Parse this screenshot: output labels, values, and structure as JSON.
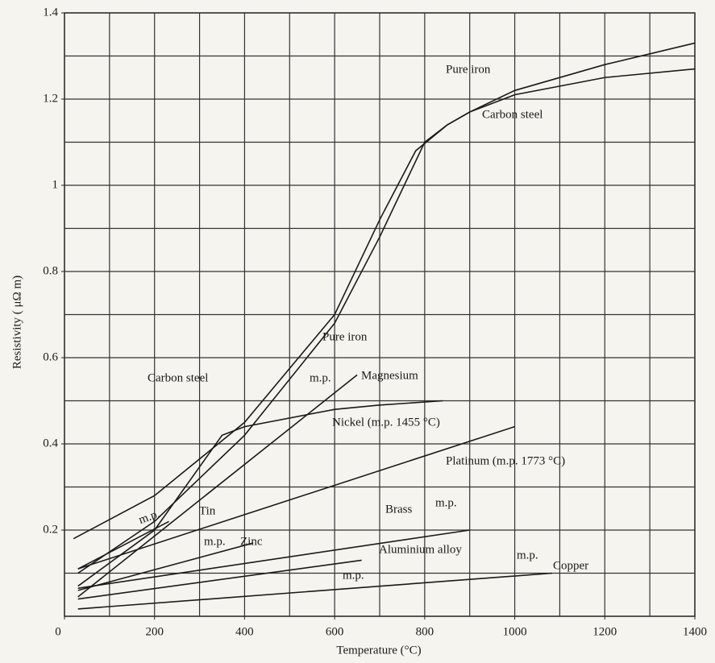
{
  "chart_data": {
    "type": "line",
    "xlabel": "Temperature (°C)",
    "ylabel": "Resistivity ( μΩ m)",
    "xlim": [
      0,
      1400
    ],
    "ylim": [
      0,
      1.4
    ],
    "xticks": [
      0,
      200,
      400,
      600,
      800,
      1000,
      1200,
      1400
    ],
    "yticks": [
      0.2,
      0.4,
      0.6,
      0.8,
      1.0,
      1.2,
      1.4
    ],
    "xgrid": [
      100,
      200,
      300,
      400,
      500,
      600,
      700,
      800,
      900,
      1000,
      1100,
      1200,
      1300
    ],
    "ygrid": [
      0.1,
      0.2,
      0.3,
      0.4,
      0.5,
      0.6,
      0.7,
      0.8,
      0.9,
      1.0,
      1.1,
      1.2,
      1.3
    ],
    "grid": true,
    "series": [
      {
        "name": "Pure iron",
        "color": "#1a1a1a",
        "x": [
          30,
          200,
          400,
          600,
          700,
          800,
          850,
          900,
          1000,
          1200,
          1400
        ],
        "values": [
          0.1,
          0.22,
          0.42,
          0.68,
          0.88,
          1.1,
          1.14,
          1.17,
          1.22,
          1.28,
          1.33
        ]
      },
      {
        "name": "Carbon steel",
        "color": "#1a1a1a",
        "x": [
          20,
          200,
          400,
          600,
          700,
          780,
          850,
          900,
          1000,
          1200,
          1400
        ],
        "values": [
          0.18,
          0.28,
          0.45,
          0.7,
          0.92,
          1.08,
          1.14,
          1.17,
          1.21,
          1.25,
          1.27
        ]
      },
      {
        "name": "Magnesium",
        "color": "#1a1a1a",
        "x": [
          30,
          650
        ],
        "values": [
          0.045,
          0.56
        ]
      },
      {
        "name": "Nickel (m.p. 1455 °C)",
        "color": "#1a1a1a",
        "x": [
          30,
          200,
          350,
          400,
          600,
          700,
          840
        ],
        "values": [
          0.07,
          0.2,
          0.42,
          0.44,
          0.48,
          0.49,
          0.5
        ]
      },
      {
        "name": "Platinum (m.p. 1773 °C)",
        "color": "#1a1a1a",
        "x": [
          30,
          1000
        ],
        "values": [
          0.11,
          0.44
        ]
      },
      {
        "name": "Tin",
        "color": "#1a1a1a",
        "x": [
          30,
          232
        ],
        "values": [
          0.11,
          0.22
        ]
      },
      {
        "name": "Zinc",
        "color": "#1a1a1a",
        "x": [
          30,
          419
        ],
        "values": [
          0.06,
          0.17
        ]
      },
      {
        "name": "Brass",
        "color": "#1a1a1a",
        "x": [
          30,
          900
        ],
        "values": [
          0.065,
          0.2
        ]
      },
      {
        "name": "Aluminium alloy",
        "color": "#1a1a1a",
        "x": [
          30,
          660
        ],
        "values": [
          0.04,
          0.13
        ]
      },
      {
        "name": "Copper",
        "color": "#1a1a1a",
        "x": [
          30,
          1083
        ],
        "values": [
          0.017,
          0.1
        ]
      }
    ],
    "annotations": [
      "Pure iron",
      "Carbon steel",
      "m.p.",
      "m.p.",
      "m.p.",
      "m.p.",
      "m.p.",
      "m.p."
    ]
  }
}
